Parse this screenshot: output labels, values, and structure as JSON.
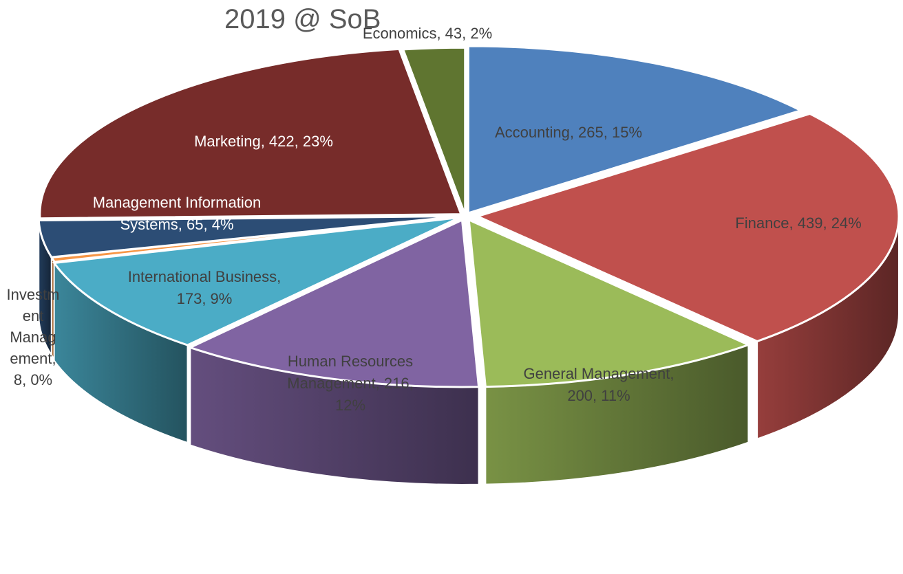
{
  "chart_data": {
    "type": "pie",
    "title": "2019 @ SoB",
    "categories": [
      "Accounting",
      "Finance",
      "General Management",
      "Human Resources Management",
      "International Business",
      "Investment Management",
      "Management Information Systems",
      "Marketing",
      "Economics"
    ],
    "values": [
      265,
      439,
      200,
      216,
      173,
      8,
      65,
      422,
      43
    ],
    "percent_labels": [
      "15%",
      "24%",
      "11%",
      "12%",
      "9%",
      "0%",
      "4%",
      "23%",
      "2%"
    ],
    "colors": [
      "#4f81bd",
      "#c0504d",
      "#9bbb59",
      "#8064a2",
      "#4bacc6",
      "#f79646",
      "#2c4d75",
      "#772c2a",
      "#5f7530"
    ],
    "data_labels": [
      [
        "Accounting, 265, 15%"
      ],
      [
        "Finance, 439, 24%"
      ],
      [
        "General Management,",
        "200, 11%"
      ],
      [
        "Human Resources",
        "Management, 216,",
        "12%"
      ],
      [
        "International Business,",
        "173, 9%"
      ],
      [
        "Investm",
        "ent",
        "Manag",
        "ement,",
        "8, 0%"
      ],
      [
        "Management Information",
        "Systems, 65, 4%"
      ],
      [
        "Marketing, 422, 23%"
      ],
      [
        "Economics, 43, 2%"
      ]
    ],
    "label_colors": [
      "#404040",
      "#404040",
      "#404040",
      "#404040",
      "#404040",
      "#404040",
      "#ffffff",
      "#ffffff",
      "#404040"
    ],
    "legend": "none"
  }
}
